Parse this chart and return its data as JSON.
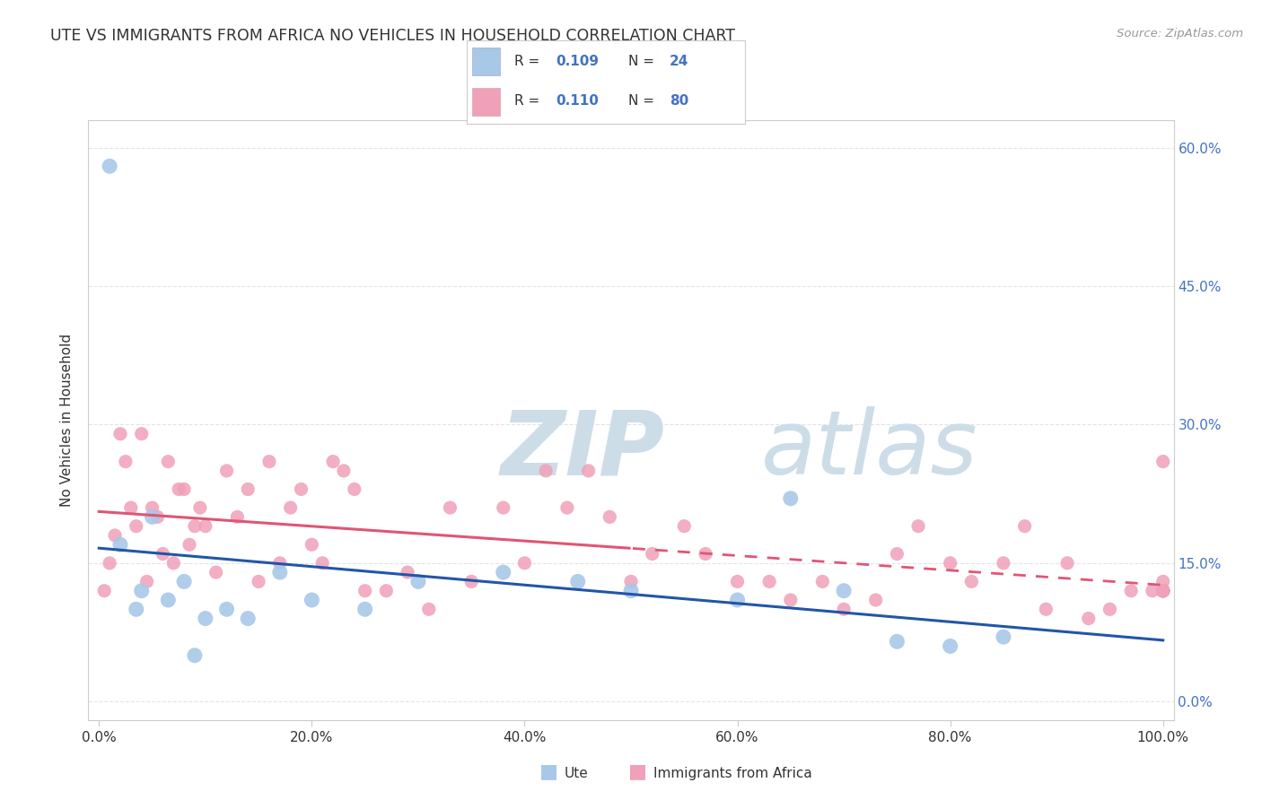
{
  "title": "UTE VS IMMIGRANTS FROM AFRICA NO VEHICLES IN HOUSEHOLD CORRELATION CHART",
  "source": "Source: ZipAtlas.com",
  "ylabel": "No Vehicles in Household",
  "ytick_vals": [
    0.0,
    15.0,
    30.0,
    45.0,
    60.0
  ],
  "xtick_vals": [
    0.0,
    20.0,
    40.0,
    60.0,
    80.0,
    100.0
  ],
  "legend_R1": "0.109",
  "legend_N1": "24",
  "legend_R2": "0.110",
  "legend_N2": "80",
  "ute_color": "#a8c8e8",
  "immigrants_color": "#f0a0b8",
  "ute_line_color": "#2255aa",
  "immigrants_line_color": "#e05575",
  "watermark_zip": "ZIP",
  "watermark_atlas": "atlas",
  "watermark_color": "#ccdde8",
  "bg_color": "#ffffff",
  "grid_color": "#dddddd",
  "axis_color": "#cccccc",
  "text_color": "#333333",
  "right_axis_color": "#4472c4",
  "ute_x": [
    1.0,
    2.0,
    3.5,
    4.0,
    5.0,
    6.5,
    8.0,
    9.0,
    10.0,
    12.0,
    14.0,
    17.0,
    20.0,
    25.0,
    30.0,
    38.0,
    45.0,
    50.0,
    60.0,
    65.0,
    70.0,
    75.0,
    80.0,
    85.0
  ],
  "ute_y": [
    58.0,
    17.0,
    10.0,
    12.0,
    20.0,
    11.0,
    13.0,
    5.0,
    9.0,
    10.0,
    9.0,
    14.0,
    11.0,
    10.0,
    13.0,
    14.0,
    13.0,
    12.0,
    11.0,
    22.0,
    12.0,
    6.5,
    6.0,
    7.0
  ],
  "immigrants_x": [
    0.5,
    1.0,
    1.5,
    2.0,
    2.5,
    3.0,
    3.5,
    4.0,
    4.5,
    5.0,
    5.5,
    6.0,
    6.5,
    7.0,
    7.5,
    8.0,
    8.5,
    9.0,
    9.5,
    10.0,
    11.0,
    12.0,
    13.0,
    14.0,
    15.0,
    16.0,
    17.0,
    18.0,
    19.0,
    20.0,
    21.0,
    22.0,
    23.0,
    24.0,
    25.0,
    27.0,
    29.0,
    31.0,
    33.0,
    35.0,
    38.0,
    40.0,
    42.0,
    44.0,
    46.0,
    48.0,
    50.0,
    52.0,
    55.0,
    57.0,
    60.0,
    63.0,
    65.0,
    68.0,
    70.0,
    73.0,
    75.0,
    77.0,
    80.0,
    82.0,
    85.0,
    87.0,
    89.0,
    91.0,
    93.0,
    95.0,
    97.0,
    99.0,
    100.0,
    100.0,
    100.0,
    100.0,
    100.0,
    100.0,
    100.0,
    100.0,
    100.0,
    100.0,
    100.0,
    100.0
  ],
  "immigrants_y": [
    12.0,
    15.0,
    18.0,
    29.0,
    26.0,
    21.0,
    19.0,
    29.0,
    13.0,
    21.0,
    20.0,
    16.0,
    26.0,
    15.0,
    23.0,
    23.0,
    17.0,
    19.0,
    21.0,
    19.0,
    14.0,
    25.0,
    20.0,
    23.0,
    13.0,
    26.0,
    15.0,
    21.0,
    23.0,
    17.0,
    15.0,
    26.0,
    25.0,
    23.0,
    12.0,
    12.0,
    14.0,
    10.0,
    21.0,
    13.0,
    21.0,
    15.0,
    25.0,
    21.0,
    25.0,
    20.0,
    13.0,
    16.0,
    19.0,
    16.0,
    13.0,
    13.0,
    11.0,
    13.0,
    10.0,
    11.0,
    16.0,
    19.0,
    15.0,
    13.0,
    15.0,
    19.0,
    10.0,
    15.0,
    9.0,
    10.0,
    12.0,
    12.0,
    26.0,
    13.0,
    12.0,
    12.0,
    12.0,
    12.0,
    12.0,
    12.0,
    12.0,
    12.0,
    12.0,
    12.0
  ]
}
